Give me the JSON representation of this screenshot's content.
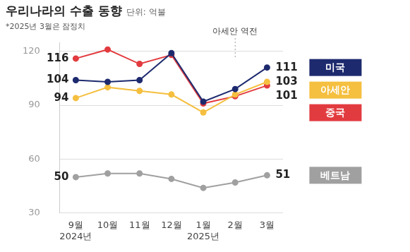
{
  "chart_data": {
    "type": "line",
    "title": "우리나라의 수출 동향",
    "subtitle": "단위: 억불",
    "note": "*2025년 3월은 잠정치",
    "annotations": [
      {
        "text": "아세안 역전",
        "at": "2월"
      }
    ],
    "categories": [
      [
        "9월",
        "2024년"
      ],
      [
        "10월"
      ],
      [
        "11월"
      ],
      [
        "12월"
      ],
      [
        "1월",
        "2025년"
      ],
      [
        "2월"
      ],
      [
        "3월"
      ]
    ],
    "series": [
      {
        "name": "미국",
        "color": "#1d2a6e",
        "marker": "circle",
        "line_style": "solid",
        "values": [
          104,
          103,
          104,
          119,
          92,
          99,
          111
        ],
        "value_labels": [
          "104",
          null,
          null,
          null,
          null,
          null,
          "111"
        ]
      },
      {
        "name": "아세안",
        "color": "#f5bf3f",
        "marker": "circle",
        "line_style": "solid",
        "values": [
          94,
          100,
          98,
          96,
          86,
          96,
          103
        ],
        "value_labels": [
          "94",
          null,
          null,
          null,
          null,
          null,
          "103"
        ]
      },
      {
        "name": "중국",
        "color": "#e23b3f",
        "marker": "circle",
        "line_style": "solid",
        "values": [
          116,
          121,
          113,
          118,
          91,
          95,
          101
        ],
        "value_labels": [
          "116",
          null,
          null,
          null,
          null,
          null,
          "101"
        ]
      },
      {
        "name": "베트남",
        "color": "#a0a0a0",
        "marker": "circle",
        "line_style": "solid",
        "values": [
          50,
          52,
          52,
          49,
          44,
          47,
          51
        ],
        "value_labels": [
          "50",
          null,
          null,
          null,
          null,
          null,
          "51"
        ]
      }
    ],
    "ylim": [
      30,
      125
    ],
    "yticks": [
      30,
      60,
      90,
      120
    ],
    "grid": true,
    "legend": "right"
  }
}
